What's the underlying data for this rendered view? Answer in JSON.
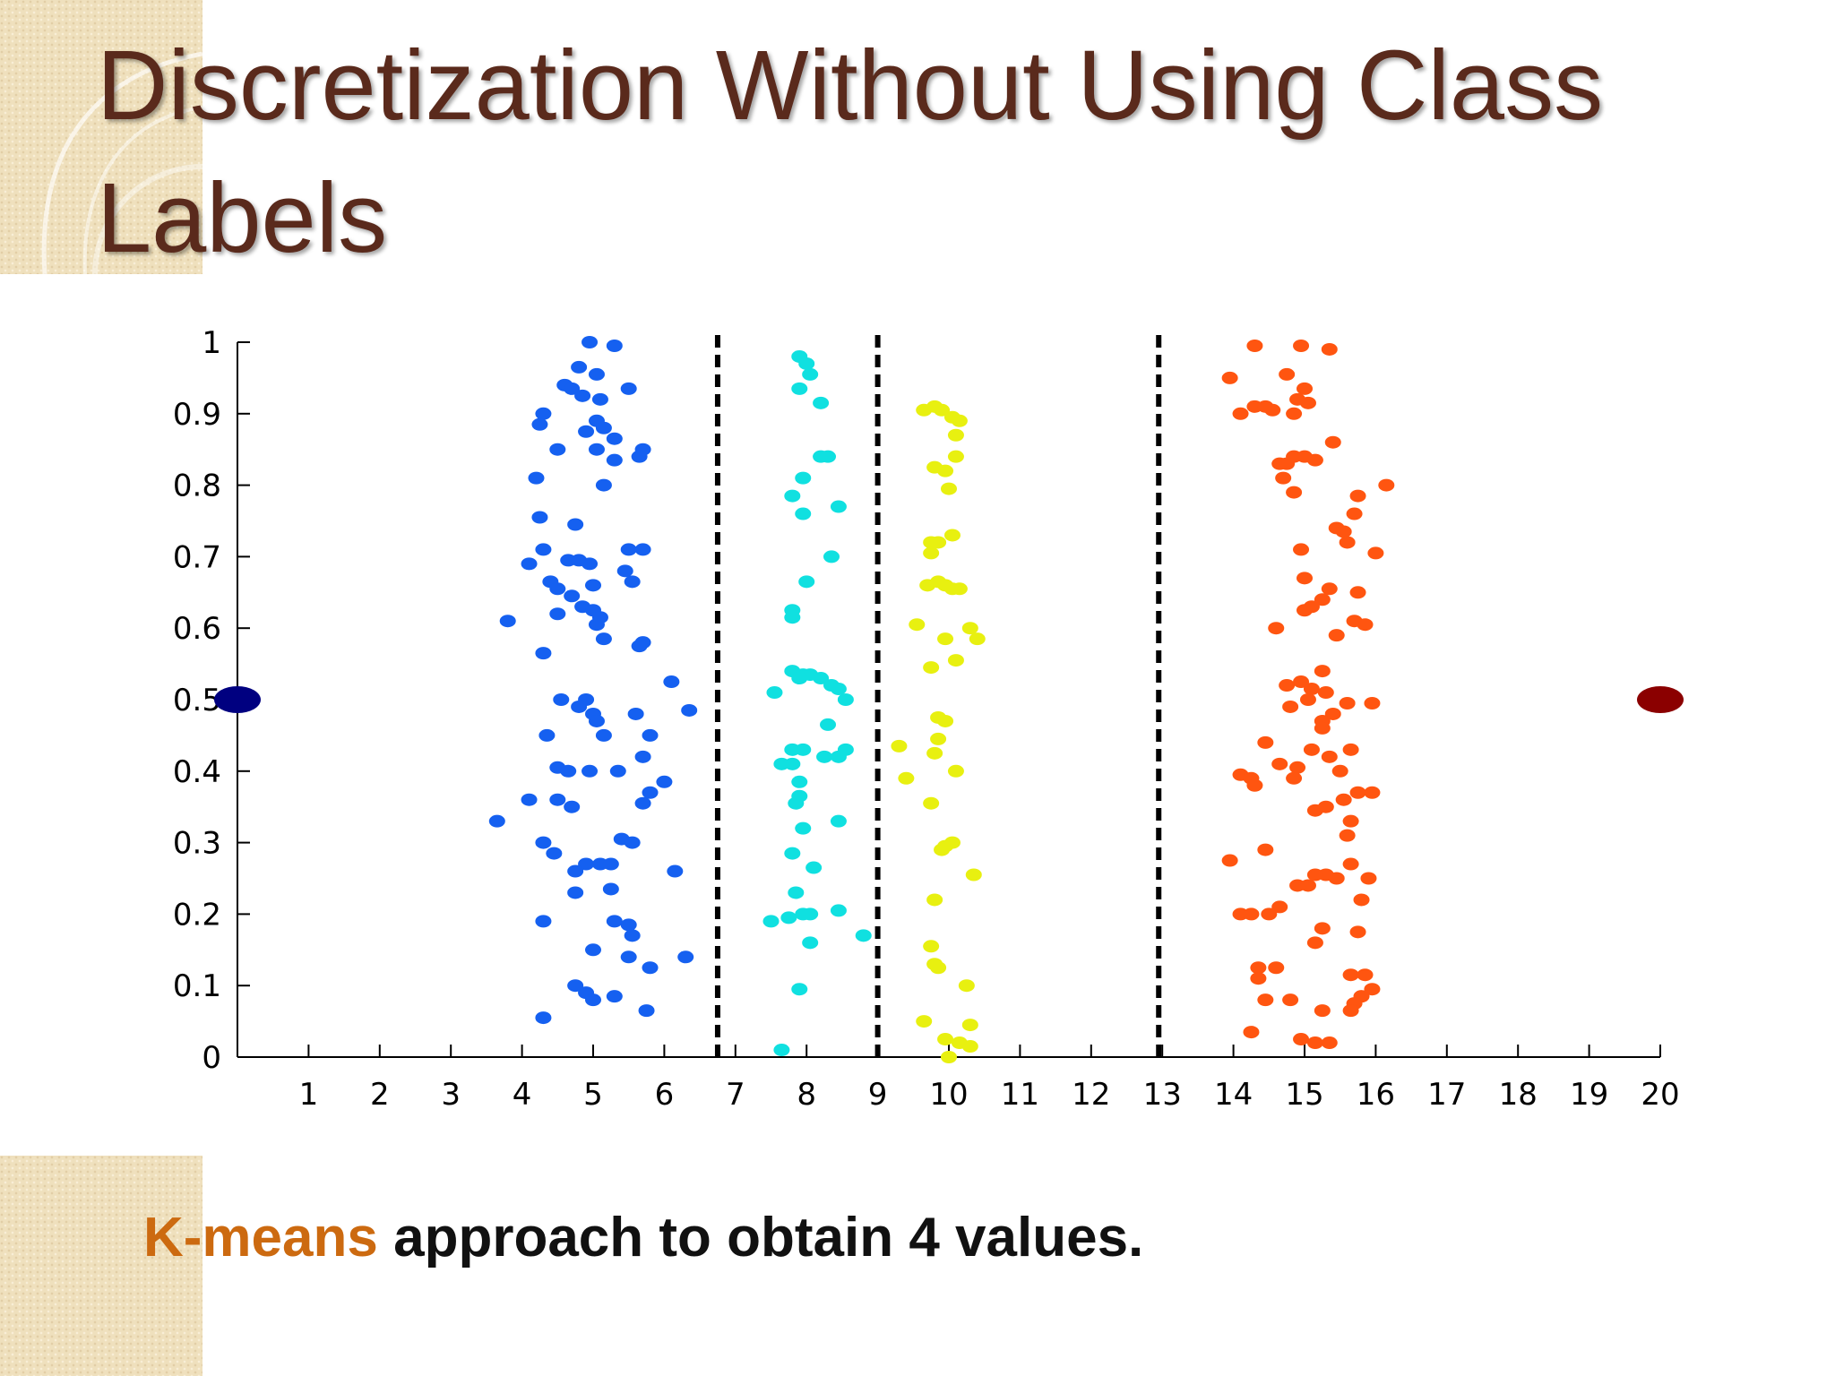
{
  "slide": {
    "title": "Discretization Without Using Class Labels",
    "caption_highlight": "K-means",
    "caption_rest": " approach to obtain 4 values.",
    "colors": {
      "title": "#5a2a1c",
      "highlight": "#cc6a10",
      "decor": "#efe0bd"
    }
  },
  "chart_data": {
    "type": "scatter",
    "title": "",
    "xlabel": "",
    "ylabel": "",
    "xlim": [
      0,
      20
    ],
    "ylim": [
      0,
      1
    ],
    "x_ticks": [
      "1",
      "2",
      "3",
      "4",
      "5",
      "6",
      "7",
      "8",
      "9",
      "10",
      "11",
      "12",
      "13",
      "14",
      "15",
      "16",
      "17",
      "18",
      "19",
      "20"
    ],
    "y_ticks": [
      "0",
      "0.1",
      "0.2",
      "0.3",
      "0.4",
      "0.5",
      "0.6",
      "0.7",
      "0.8",
      "0.9",
      "1"
    ],
    "grid": false,
    "legend": "none",
    "split_lines_x": [
      6.75,
      9.0,
      12.95
    ],
    "endpoints": [
      {
        "x": 0,
        "y": 0.5,
        "color": "#000080"
      },
      {
        "x": 20,
        "y": 0.5,
        "color": "#8b0000"
      }
    ],
    "series": [
      {
        "color": "#1560f0",
        "points": [
          [
            4.95,
            1.0
          ],
          [
            5.3,
            0.995
          ],
          [
            4.8,
            0.965
          ],
          [
            5.05,
            0.955
          ],
          [
            4.6,
            0.94
          ],
          [
            4.7,
            0.935
          ],
          [
            5.5,
            0.935
          ],
          [
            4.85,
            0.925
          ],
          [
            5.1,
            0.92
          ],
          [
            4.3,
            0.9
          ],
          [
            4.25,
            0.885
          ],
          [
            5.05,
            0.89
          ],
          [
            5.15,
            0.88
          ],
          [
            4.9,
            0.875
          ],
          [
            5.3,
            0.865
          ],
          [
            4.5,
            0.85
          ],
          [
            5.05,
            0.85
          ],
          [
            5.7,
            0.85
          ],
          [
            5.3,
            0.835
          ],
          [
            5.65,
            0.84
          ],
          [
            4.2,
            0.81
          ],
          [
            5.15,
            0.8
          ],
          [
            4.25,
            0.755
          ],
          [
            4.75,
            0.745
          ],
          [
            5.5,
            0.71
          ],
          [
            5.7,
            0.71
          ],
          [
            4.3,
            0.71
          ],
          [
            4.1,
            0.69
          ],
          [
            4.65,
            0.695
          ],
          [
            4.8,
            0.695
          ],
          [
            4.95,
            0.69
          ],
          [
            5.45,
            0.68
          ],
          [
            4.4,
            0.665
          ],
          [
            4.5,
            0.655
          ],
          [
            5.0,
            0.66
          ],
          [
            5.55,
            0.665
          ],
          [
            4.7,
            0.645
          ],
          [
            4.85,
            0.63
          ],
          [
            4.5,
            0.62
          ],
          [
            5.0,
            0.625
          ],
          [
            5.1,
            0.615
          ],
          [
            3.8,
            0.61
          ],
          [
            5.05,
            0.605
          ],
          [
            5.15,
            0.585
          ],
          [
            5.7,
            0.58
          ],
          [
            5.65,
            0.575
          ],
          [
            4.3,
            0.565
          ],
          [
            6.1,
            0.525
          ],
          [
            4.55,
            0.5
          ],
          [
            4.9,
            0.5
          ],
          [
            4.8,
            0.49
          ],
          [
            6.35,
            0.485
          ],
          [
            5.0,
            0.48
          ],
          [
            5.6,
            0.48
          ],
          [
            5.05,
            0.47
          ],
          [
            4.35,
            0.45
          ],
          [
            5.15,
            0.45
          ],
          [
            5.8,
            0.45
          ],
          [
            5.7,
            0.42
          ],
          [
            4.5,
            0.405
          ],
          [
            4.65,
            0.4
          ],
          [
            4.95,
            0.4
          ],
          [
            5.35,
            0.4
          ],
          [
            6.0,
            0.385
          ],
          [
            5.8,
            0.37
          ],
          [
            4.1,
            0.36
          ],
          [
            4.5,
            0.36
          ],
          [
            4.7,
            0.35
          ],
          [
            5.7,
            0.355
          ],
          [
            3.65,
            0.33
          ],
          [
            5.4,
            0.305
          ],
          [
            5.55,
            0.3
          ],
          [
            4.3,
            0.3
          ],
          [
            4.45,
            0.285
          ],
          [
            4.9,
            0.27
          ],
          [
            5.1,
            0.27
          ],
          [
            5.25,
            0.27
          ],
          [
            4.75,
            0.26
          ],
          [
            6.15,
            0.26
          ],
          [
            5.25,
            0.235
          ],
          [
            4.75,
            0.23
          ],
          [
            4.3,
            0.19
          ],
          [
            5.3,
            0.19
          ],
          [
            5.5,
            0.185
          ],
          [
            5.55,
            0.17
          ],
          [
            5.0,
            0.15
          ],
          [
            6.3,
            0.14
          ],
          [
            5.5,
            0.14
          ],
          [
            5.8,
            0.125
          ],
          [
            4.75,
            0.1
          ],
          [
            4.9,
            0.09
          ],
          [
            5.0,
            0.08
          ],
          [
            5.3,
            0.085
          ],
          [
            5.75,
            0.065
          ],
          [
            4.3,
            0.055
          ]
        ]
      },
      {
        "color": "#10e0e0",
        "points": [
          [
            7.9,
            0.98
          ],
          [
            8.0,
            0.97
          ],
          [
            8.05,
            0.955
          ],
          [
            7.9,
            0.935
          ],
          [
            8.2,
            0.915
          ],
          [
            8.2,
            0.84
          ],
          [
            8.3,
            0.84
          ],
          [
            7.95,
            0.81
          ],
          [
            7.8,
            0.785
          ],
          [
            8.45,
            0.77
          ],
          [
            7.95,
            0.76
          ],
          [
            8.35,
            0.7
          ],
          [
            8.0,
            0.665
          ],
          [
            7.8,
            0.625
          ],
          [
            7.8,
            0.615
          ],
          [
            7.8,
            0.54
          ],
          [
            7.95,
            0.535
          ],
          [
            8.05,
            0.535
          ],
          [
            8.2,
            0.53
          ],
          [
            8.35,
            0.52
          ],
          [
            7.9,
            0.53
          ],
          [
            7.55,
            0.51
          ],
          [
            8.45,
            0.515
          ],
          [
            8.55,
            0.5
          ],
          [
            8.3,
            0.465
          ],
          [
            7.8,
            0.43
          ],
          [
            7.95,
            0.43
          ],
          [
            8.55,
            0.43
          ],
          [
            8.25,
            0.42
          ],
          [
            8.45,
            0.42
          ],
          [
            7.8,
            0.41
          ],
          [
            7.65,
            0.41
          ],
          [
            7.9,
            0.385
          ],
          [
            7.9,
            0.365
          ],
          [
            7.85,
            0.355
          ],
          [
            7.95,
            0.32
          ],
          [
            8.45,
            0.33
          ],
          [
            7.8,
            0.285
          ],
          [
            8.1,
            0.265
          ],
          [
            7.85,
            0.23
          ],
          [
            7.95,
            0.2
          ],
          [
            8.05,
            0.2
          ],
          [
            8.45,
            0.205
          ],
          [
            7.75,
            0.195
          ],
          [
            7.5,
            0.19
          ],
          [
            8.05,
            0.16
          ],
          [
            8.8,
            0.17
          ],
          [
            7.9,
            0.095
          ],
          [
            7.65,
            0.01
          ]
        ]
      },
      {
        "color": "#e8f010",
        "points": [
          [
            9.65,
            0.905
          ],
          [
            9.8,
            0.91
          ],
          [
            9.9,
            0.905
          ],
          [
            10.05,
            0.895
          ],
          [
            10.15,
            0.89
          ],
          [
            10.1,
            0.87
          ],
          [
            10.1,
            0.84
          ],
          [
            9.8,
            0.825
          ],
          [
            9.95,
            0.82
          ],
          [
            10.0,
            0.795
          ],
          [
            9.75,
            0.72
          ],
          [
            9.85,
            0.72
          ],
          [
            10.05,
            0.73
          ],
          [
            9.75,
            0.705
          ],
          [
            9.7,
            0.66
          ],
          [
            9.85,
            0.665
          ],
          [
            9.95,
            0.66
          ],
          [
            10.05,
            0.655
          ],
          [
            10.15,
            0.655
          ],
          [
            9.55,
            0.605
          ],
          [
            10.3,
            0.6
          ],
          [
            10.4,
            0.585
          ],
          [
            9.95,
            0.585
          ],
          [
            10.1,
            0.555
          ],
          [
            9.75,
            0.545
          ],
          [
            9.85,
            0.475
          ],
          [
            9.95,
            0.47
          ],
          [
            9.85,
            0.445
          ],
          [
            9.3,
            0.435
          ],
          [
            9.8,
            0.425
          ],
          [
            10.1,
            0.4
          ],
          [
            9.4,
            0.39
          ],
          [
            9.75,
            0.355
          ],
          [
            10.05,
            0.3
          ],
          [
            9.95,
            0.295
          ],
          [
            9.9,
            0.29
          ],
          [
            10.35,
            0.255
          ],
          [
            9.8,
            0.22
          ],
          [
            9.75,
            0.155
          ],
          [
            9.8,
            0.13
          ],
          [
            9.85,
            0.125
          ],
          [
            10.25,
            0.1
          ],
          [
            9.65,
            0.05
          ],
          [
            10.3,
            0.045
          ],
          [
            9.95,
            0.025
          ],
          [
            10.15,
            0.02
          ],
          [
            10.3,
            0.015
          ],
          [
            10.0,
            0.0
          ]
        ]
      },
      {
        "color": "#ff5510",
        "points": [
          [
            14.3,
            0.995
          ],
          [
            14.95,
            0.995
          ],
          [
            15.35,
            0.99
          ],
          [
            13.95,
            0.95
          ],
          [
            14.75,
            0.955
          ],
          [
            15.0,
            0.935
          ],
          [
            14.9,
            0.92
          ],
          [
            15.05,
            0.915
          ],
          [
            14.3,
            0.91
          ],
          [
            14.45,
            0.91
          ],
          [
            14.1,
            0.9
          ],
          [
            14.55,
            0.905
          ],
          [
            14.85,
            0.9
          ],
          [
            15.4,
            0.86
          ],
          [
            14.85,
            0.84
          ],
          [
            15.0,
            0.84
          ],
          [
            14.65,
            0.83
          ],
          [
            14.75,
            0.83
          ],
          [
            15.15,
            0.835
          ],
          [
            14.7,
            0.81
          ],
          [
            14.85,
            0.79
          ],
          [
            16.15,
            0.8
          ],
          [
            15.75,
            0.785
          ],
          [
            15.7,
            0.76
          ],
          [
            15.45,
            0.74
          ],
          [
            15.55,
            0.735
          ],
          [
            15.6,
            0.72
          ],
          [
            16.0,
            0.705
          ],
          [
            14.95,
            0.71
          ],
          [
            15.0,
            0.67
          ],
          [
            15.35,
            0.655
          ],
          [
            15.25,
            0.64
          ],
          [
            15.75,
            0.65
          ],
          [
            15.1,
            0.63
          ],
          [
            15.0,
            0.625
          ],
          [
            15.7,
            0.61
          ],
          [
            15.85,
            0.605
          ],
          [
            14.6,
            0.6
          ],
          [
            15.45,
            0.59
          ],
          [
            15.25,
            0.54
          ],
          [
            14.95,
            0.525
          ],
          [
            14.75,
            0.52
          ],
          [
            15.1,
            0.515
          ],
          [
            15.3,
            0.51
          ],
          [
            15.05,
            0.5
          ],
          [
            14.8,
            0.49
          ],
          [
            15.95,
            0.495
          ],
          [
            15.6,
            0.495
          ],
          [
            15.4,
            0.48
          ],
          [
            15.25,
            0.47
          ],
          [
            15.25,
            0.46
          ],
          [
            14.45,
            0.44
          ],
          [
            15.1,
            0.43
          ],
          [
            15.65,
            0.43
          ],
          [
            15.35,
            0.42
          ],
          [
            14.65,
            0.41
          ],
          [
            14.9,
            0.405
          ],
          [
            14.1,
            0.395
          ],
          [
            14.25,
            0.39
          ],
          [
            14.3,
            0.38
          ],
          [
            14.85,
            0.39
          ],
          [
            15.5,
            0.4
          ],
          [
            15.95,
            0.37
          ],
          [
            15.75,
            0.37
          ],
          [
            15.55,
            0.36
          ],
          [
            15.3,
            0.35
          ],
          [
            15.15,
            0.345
          ],
          [
            15.65,
            0.33
          ],
          [
            15.6,
            0.31
          ],
          [
            14.45,
            0.29
          ],
          [
            13.95,
            0.275
          ],
          [
            15.65,
            0.27
          ],
          [
            15.9,
            0.25
          ],
          [
            15.3,
            0.255
          ],
          [
            15.15,
            0.255
          ],
          [
            15.45,
            0.25
          ],
          [
            14.9,
            0.24
          ],
          [
            15.05,
            0.24
          ],
          [
            15.8,
            0.22
          ],
          [
            14.65,
            0.21
          ],
          [
            14.5,
            0.2
          ],
          [
            14.1,
            0.2
          ],
          [
            14.25,
            0.2
          ],
          [
            15.25,
            0.18
          ],
          [
            15.75,
            0.175
          ],
          [
            15.15,
            0.16
          ],
          [
            14.35,
            0.125
          ],
          [
            14.6,
            0.125
          ],
          [
            15.65,
            0.115
          ],
          [
            15.85,
            0.115
          ],
          [
            14.35,
            0.11
          ],
          [
            15.95,
            0.095
          ],
          [
            15.8,
            0.085
          ],
          [
            14.45,
            0.08
          ],
          [
            14.8,
            0.08
          ],
          [
            15.7,
            0.075
          ],
          [
            15.65,
            0.065
          ],
          [
            15.25,
            0.065
          ],
          [
            14.25,
            0.035
          ],
          [
            14.95,
            0.025
          ],
          [
            15.15,
            0.02
          ],
          [
            15.35,
            0.02
          ]
        ]
      }
    ]
  }
}
